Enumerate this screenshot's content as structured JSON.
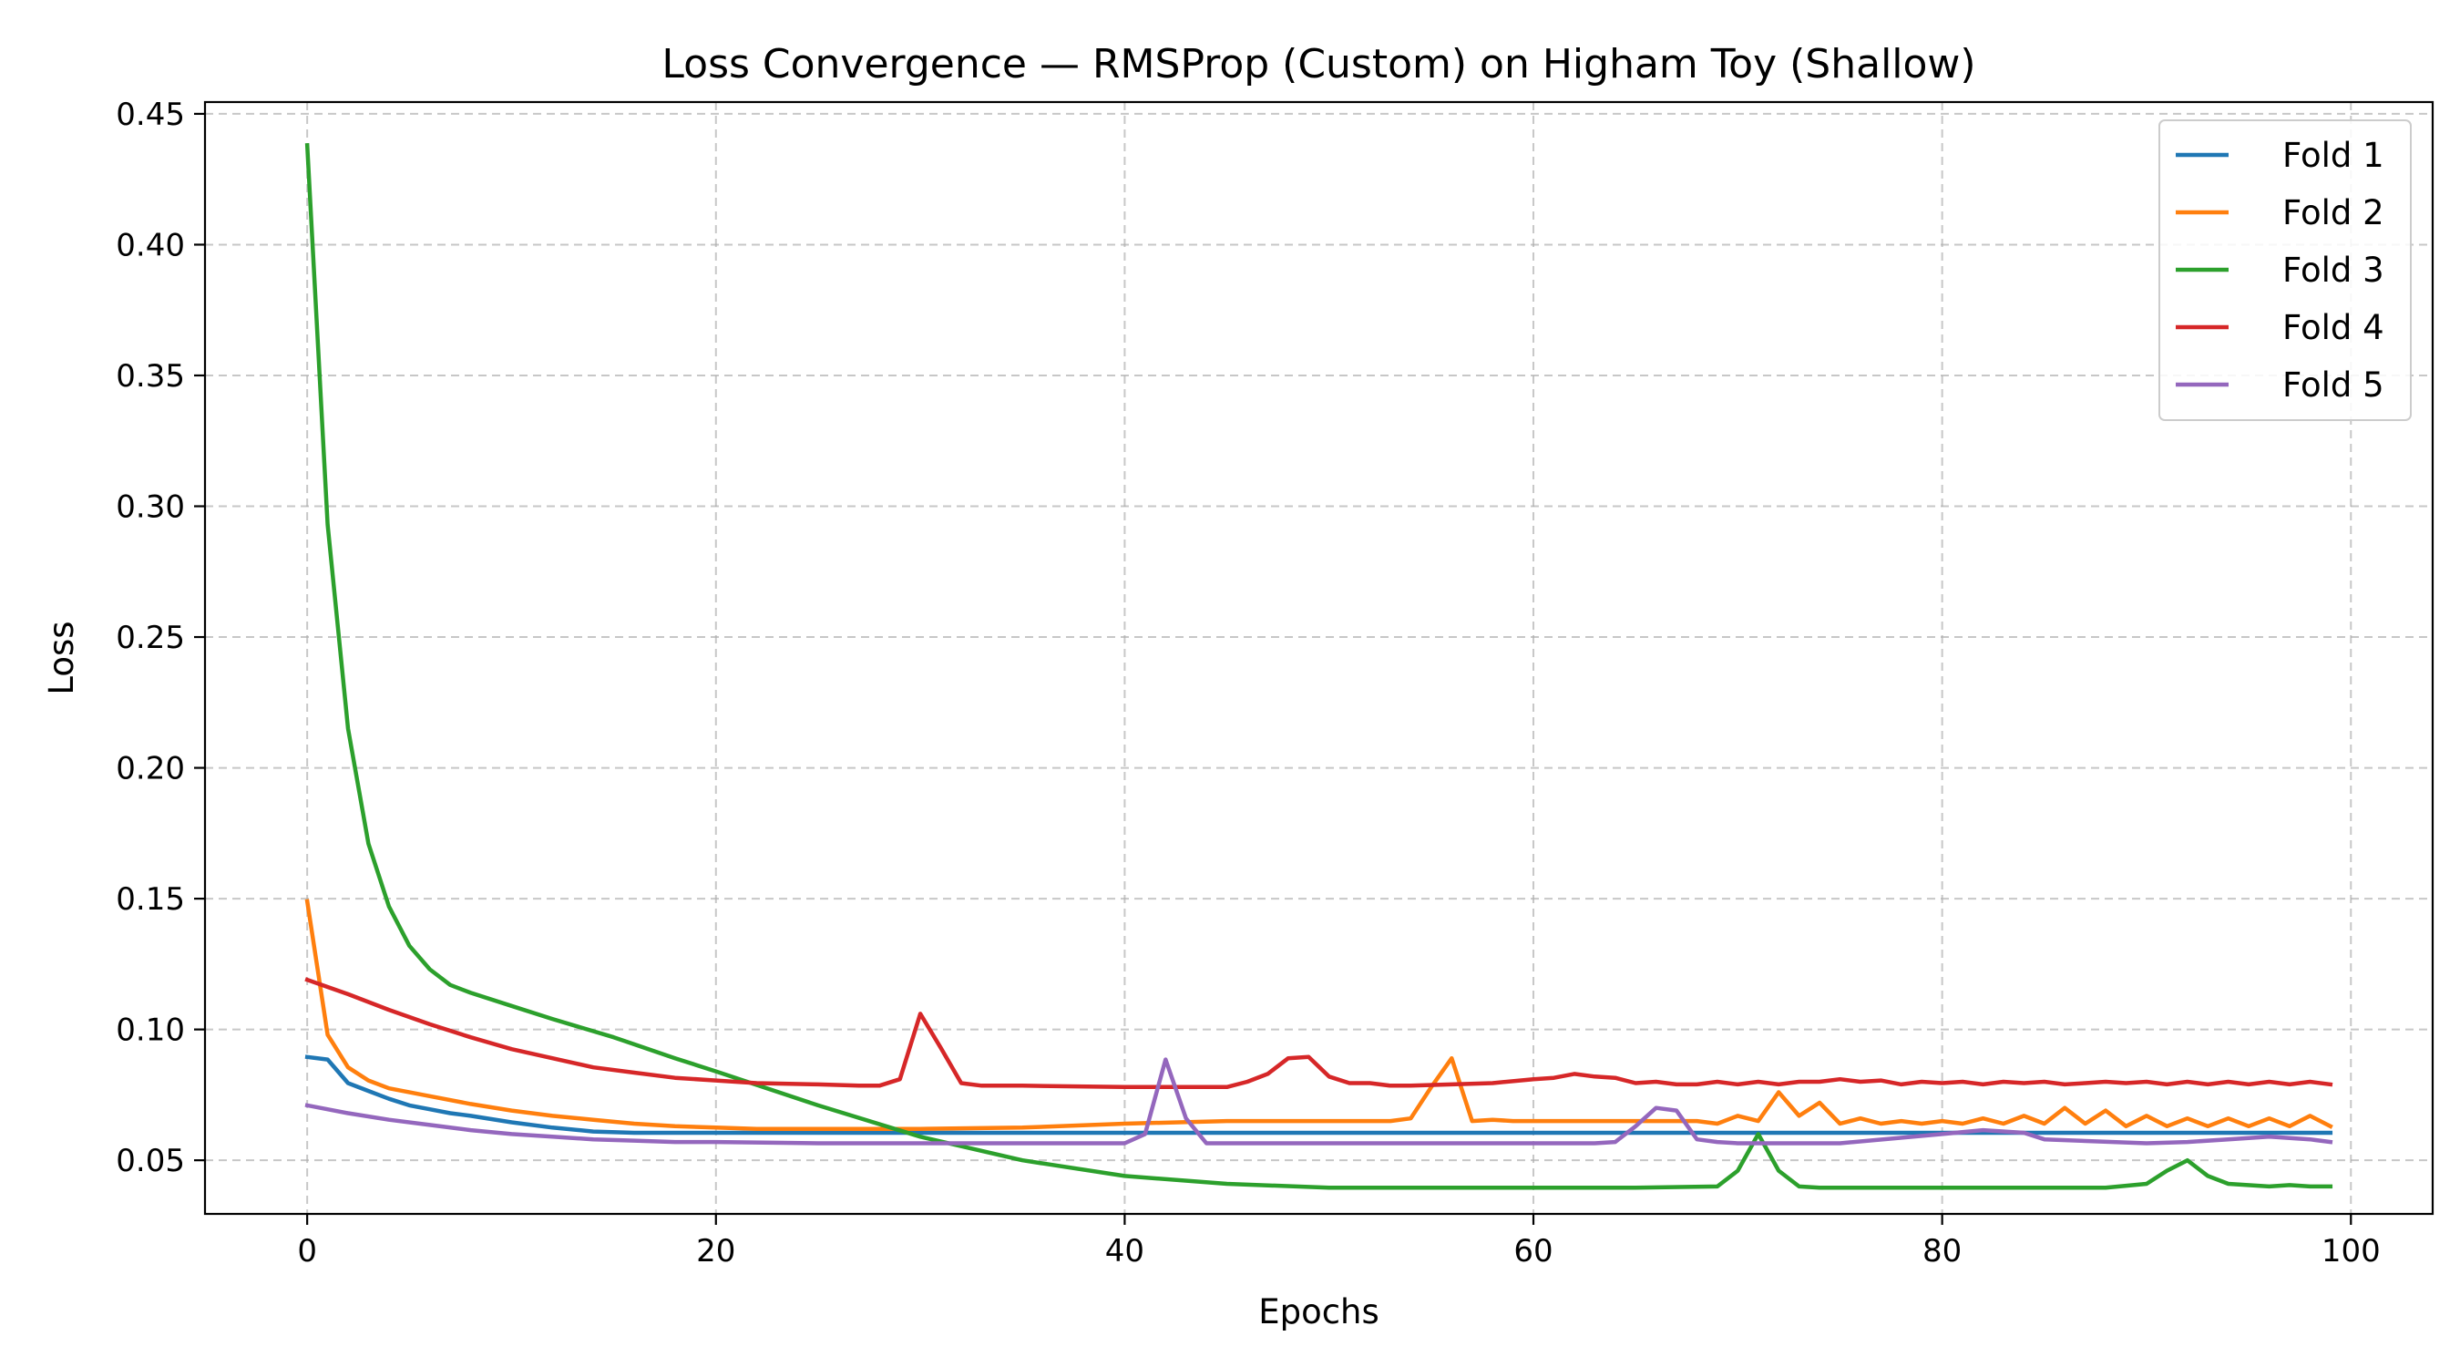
{
  "chart_data": {
    "type": "line",
    "title": "Loss Convergence — RMSProp (Custom) on Higham Toy (Shallow)",
    "xlabel": "Epochs",
    "ylabel": "Loss",
    "xlim": [
      -5,
      104
    ],
    "ylim": [
      0.0295,
      0.4545
    ],
    "xticks": [
      0,
      20,
      40,
      60,
      80,
      100
    ],
    "xtick_labels": [
      "0",
      "20",
      "40",
      "60",
      "80",
      "100"
    ],
    "yticks": [
      0.05,
      0.1,
      0.15,
      0.2,
      0.25,
      0.3,
      0.35,
      0.4,
      0.45
    ],
    "ytick_labels": [
      "0.05",
      "0.10",
      "0.15",
      "0.20",
      "0.25",
      "0.30",
      "0.35",
      "0.40",
      "0.45"
    ],
    "grid": true,
    "legend_position": "top-right",
    "series": [
      {
        "name": "Fold 1",
        "color": "#1f77b4",
        "x": [
          0,
          1,
          2,
          3,
          4,
          5,
          6,
          7,
          8,
          10,
          12,
          14,
          16,
          18,
          20,
          25,
          30,
          35,
          40,
          45,
          50,
          55,
          60,
          65,
          70,
          75,
          80,
          85,
          90,
          95,
          99
        ],
        "y": [
          0.0895,
          0.0885,
          0.0795,
          0.0765,
          0.0735,
          0.071,
          0.0695,
          0.068,
          0.067,
          0.0645,
          0.0625,
          0.061,
          0.0605,
          0.0605,
          0.0605,
          0.0605,
          0.0605,
          0.0605,
          0.0605,
          0.0605,
          0.0605,
          0.0605,
          0.0605,
          0.0605,
          0.0605,
          0.0605,
          0.0605,
          0.0605,
          0.0605,
          0.0605,
          0.0605
        ]
      },
      {
        "name": "Fold 2",
        "color": "#ff7f0e",
        "x": [
          0,
          1,
          2,
          3,
          4,
          6,
          8,
          10,
          12,
          14,
          16,
          18,
          20,
          22,
          25,
          30,
          35,
          40,
          45,
          50,
          52,
          53,
          54,
          55,
          56,
          57,
          58,
          59,
          60,
          62,
          64,
          66,
          68,
          69,
          70,
          71,
          72,
          73,
          74,
          75,
          76,
          77,
          78,
          79,
          80,
          81,
          82,
          83,
          84,
          85,
          86,
          87,
          88,
          89,
          90,
          91,
          92,
          93,
          94,
          95,
          96,
          97,
          98,
          99
        ],
        "y": [
          0.149,
          0.098,
          0.0855,
          0.0805,
          0.0775,
          0.0745,
          0.0715,
          0.069,
          0.067,
          0.0655,
          0.064,
          0.063,
          0.0625,
          0.062,
          0.062,
          0.062,
          0.0625,
          0.064,
          0.065,
          0.065,
          0.065,
          0.065,
          0.066,
          0.078,
          0.089,
          0.065,
          0.0655,
          0.065,
          0.065,
          0.065,
          0.065,
          0.065,
          0.065,
          0.064,
          0.067,
          0.065,
          0.076,
          0.067,
          0.072,
          0.064,
          0.066,
          0.064,
          0.065,
          0.064,
          0.065,
          0.064,
          0.066,
          0.064,
          0.067,
          0.064,
          0.07,
          0.064,
          0.069,
          0.063,
          0.067,
          0.063,
          0.066,
          0.063,
          0.066,
          0.063,
          0.066,
          0.063,
          0.067,
          0.063
        ]
      },
      {
        "name": "Fold 3",
        "color": "#2ca02c",
        "x": [
          0,
          1,
          2,
          3,
          4,
          5,
          6,
          7,
          8,
          10,
          12,
          15,
          18,
          20,
          25,
          30,
          35,
          40,
          45,
          50,
          55,
          60,
          65,
          69,
          70,
          71,
          72,
          73,
          74,
          80,
          88,
          90,
          91,
          92,
          93,
          94,
          96,
          97,
          98,
          99
        ],
        "y": [
          0.438,
          0.293,
          0.215,
          0.171,
          0.147,
          0.132,
          0.123,
          0.117,
          0.114,
          0.109,
          0.104,
          0.097,
          0.089,
          0.084,
          0.071,
          0.059,
          0.05,
          0.044,
          0.041,
          0.0395,
          0.0395,
          0.0395,
          0.0395,
          0.04,
          0.046,
          0.06,
          0.046,
          0.04,
          0.0395,
          0.0395,
          0.0395,
          0.041,
          0.046,
          0.05,
          0.044,
          0.041,
          0.04,
          0.0405,
          0.04,
          0.04
        ]
      },
      {
        "name": "Fold 4",
        "color": "#d62728",
        "x": [
          0,
          2,
          4,
          6,
          8,
          10,
          12,
          14,
          16,
          18,
          20,
          22,
          25,
          27,
          28,
          29,
          30,
          31,
          32,
          33,
          35,
          40,
          45,
          46,
          47,
          48,
          49,
          50,
          51,
          52,
          53,
          54,
          56,
          58,
          60,
          61,
          62,
          63,
          64,
          65,
          66,
          67,
          68,
          69,
          70,
          71,
          72,
          73,
          74,
          75,
          76,
          77,
          78,
          79,
          80,
          81,
          82,
          83,
          84,
          85,
          86,
          87,
          88,
          89,
          90,
          91,
          92,
          93,
          94,
          95,
          96,
          97,
          98,
          99
        ],
        "y": [
          0.119,
          0.1135,
          0.1075,
          0.102,
          0.097,
          0.0925,
          0.089,
          0.0855,
          0.0835,
          0.0815,
          0.0805,
          0.0795,
          0.079,
          0.0785,
          0.0785,
          0.081,
          0.106,
          0.093,
          0.0795,
          0.0785,
          0.0785,
          0.078,
          0.078,
          0.08,
          0.083,
          0.089,
          0.0895,
          0.082,
          0.0795,
          0.0795,
          0.0785,
          0.0785,
          0.079,
          0.0795,
          0.081,
          0.0815,
          0.083,
          0.082,
          0.0815,
          0.0795,
          0.08,
          0.079,
          0.079,
          0.08,
          0.079,
          0.08,
          0.079,
          0.08,
          0.08,
          0.081,
          0.08,
          0.0805,
          0.079,
          0.08,
          0.0795,
          0.08,
          0.079,
          0.08,
          0.0795,
          0.08,
          0.079,
          0.0795,
          0.08,
          0.0795,
          0.08,
          0.079,
          0.08,
          0.079,
          0.08,
          0.079,
          0.08,
          0.079,
          0.08,
          0.079
        ]
      },
      {
        "name": "Fold 5",
        "color": "#9467bd",
        "x": [
          0,
          2,
          4,
          6,
          8,
          10,
          12,
          14,
          16,
          18,
          20,
          25,
          30,
          35,
          40,
          41,
          42,
          43,
          44,
          45,
          50,
          55,
          60,
          63,
          64,
          65,
          66,
          67,
          68,
          69,
          70,
          75,
          80,
          82,
          84,
          85,
          90,
          92,
          94,
          96,
          98,
          99
        ],
        "y": [
          0.071,
          0.068,
          0.0655,
          0.0635,
          0.0615,
          0.06,
          0.059,
          0.058,
          0.0575,
          0.057,
          0.057,
          0.0565,
          0.0565,
          0.0565,
          0.0565,
          0.06,
          0.0885,
          0.066,
          0.0565,
          0.0565,
          0.0565,
          0.0565,
          0.0565,
          0.0565,
          0.057,
          0.063,
          0.07,
          0.069,
          0.058,
          0.057,
          0.0565,
          0.0565,
          0.06,
          0.0615,
          0.0605,
          0.058,
          0.0565,
          0.057,
          0.058,
          0.059,
          0.058,
          0.057
        ]
      }
    ]
  }
}
